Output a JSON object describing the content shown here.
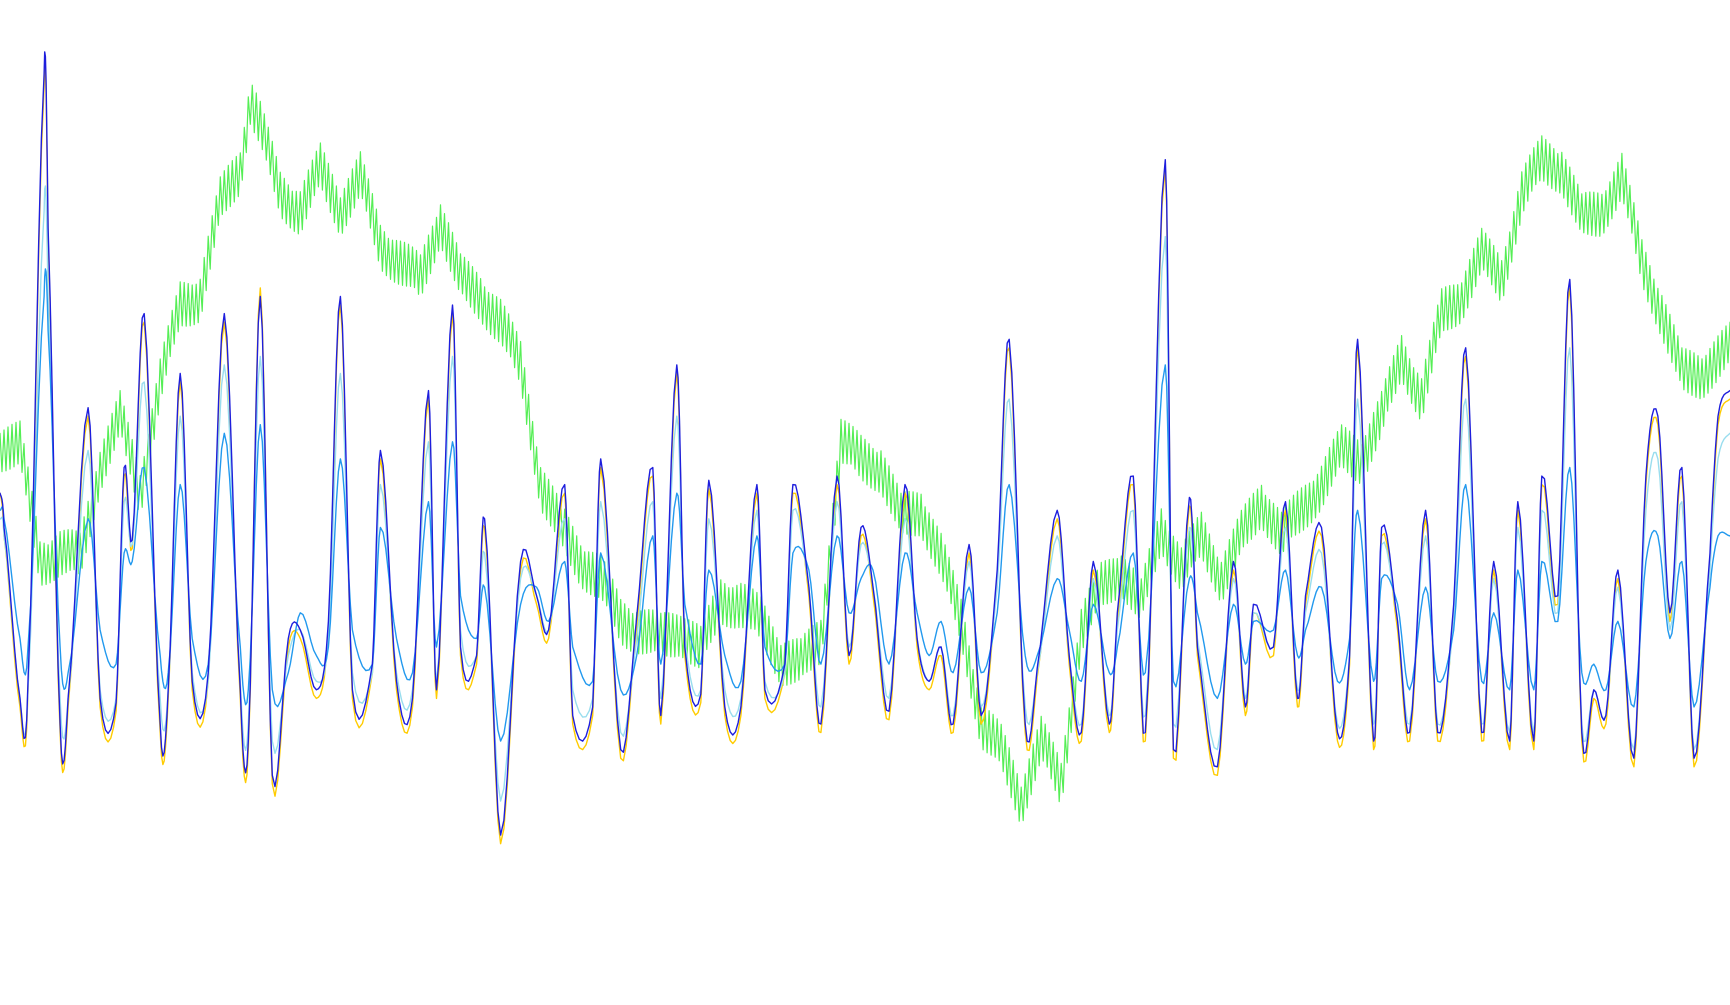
{
  "chart_data": {
    "type": "line",
    "title": "",
    "xlabel": "",
    "ylabel": "",
    "grid": false,
    "legend": "none",
    "xlim": [
      0,
      864
    ],
    "ylim": [
      0,
      1000
    ],
    "series": [
      {
        "role": "price",
        "color": "#55ee55",
        "noise_amp": 30,
        "noise_period": 2,
        "x": [
          0,
          10,
          20,
          30,
          40,
          50,
          60,
          70,
          80,
          90,
          100,
          110,
          120,
          125,
          130,
          140,
          150,
          160,
          170,
          180,
          190,
          200,
          210,
          220,
          230,
          240,
          250,
          260,
          270,
          280,
          290,
          300,
          310,
          320,
          330,
          340,
          350,
          360,
          370,
          380,
          390,
          400,
          410,
          420,
          430,
          440,
          450,
          460,
          470,
          480,
          490,
          500,
          510,
          520,
          530,
          540,
          550,
          560,
          570,
          580,
          590,
          600,
          610,
          620,
          630,
          640,
          650,
          660,
          670,
          680,
          690,
          700,
          710,
          720,
          730,
          740,
          750,
          760,
          770,
          780,
          790,
          800,
          810,
          820,
          830,
          840,
          850,
          864
        ],
        "values": [
          525,
          525,
          390,
          400,
          395,
          500,
          560,
          470,
          600,
          690,
          700,
          810,
          850,
          930,
          900,
          820,
          800,
          850,
          800,
          840,
          760,
          740,
          720,
          790,
          720,
          700,
          670,
          620,
          480,
          430,
          390,
          370,
          320,
          310,
          300,
          310,
          285,
          345,
          340,
          320,
          275,
          270,
          300,
          530,
          510,
          500,
          440,
          450,
          395,
          320,
          200,
          170,
          110,
          180,
          130,
          310,
          360,
          380,
          340,
          430,
          380,
          420,
          370,
          420,
          460,
          420,
          450,
          480,
          520,
          510,
          560,
          630,
          580,
          680,
          700,
          750,
          720,
          820,
          860,
          850,
          790,
          800,
          840,
          740,
          680,
          610,
          610,
          640
        ]
      },
      {
        "role": "fast",
        "color": "#1e1edd",
        "x": [
          0,
          2,
          10,
          14,
          22,
          24,
          30,
          34,
          44,
          50,
          58,
          62,
          66,
          72,
          80,
          84,
          90,
          96,
          104,
          112,
          120,
          124,
          130,
          136,
          144,
          150,
          158,
          164,
          170,
          176,
          186,
          190,
          198,
          206,
          214,
          218,
          226,
          230,
          238,
          242,
          250,
          260,
          268,
          274,
          282,
          286,
          296,
          300,
          310,
          318,
          326,
          330,
          338,
          342,
          350,
          354,
          362,
          370,
          378,
          382,
          392,
          396,
          404,
          410,
          418,
          424,
          430,
          436,
          444,
          452,
          458,
          464,
          470,
          476,
          484,
          490,
          498,
          504,
          512,
          518,
          528,
          534,
          540,
          546,
          554,
          558,
          566,
          572,
          582,
          586,
          594,
          598,
          608,
          616,
          622,
          626,
          636,
          642,
          648,
          652,
          660,
          668,
          674,
          678,
          686,
          690,
          698,
          704,
          712,
          718,
          726,
          732,
          740,
          746,
          754,
          758,
          766,
          770,
          778,
          784,
          790,
          796,
          802,
          808,
          816,
          822,
          828,
          834,
          840,
          846,
          854,
          858,
          864
        ],
        "values": [
          470,
          430,
          230,
          250,
          960,
          780,
          200,
          230,
          570,
          230,
          225,
          500,
          415,
          680,
          200,
          240,
          610,
          250,
          260,
          680,
          240,
          180,
          700,
          140,
          300,
          310,
          240,
          320,
          700,
          240,
          270,
          520,
          250,
          230,
          590,
          240,
          690,
          290,
          280,
          440,
          70,
          390,
          350,
          310,
          480,
          210,
          220,
          510,
          170,
          325,
          500,
          210,
          620,
          290,
          235,
          485,
          220,
          220,
          480,
          240,
          270,
          480,
          360,
          200,
          490,
          280,
          430,
          360,
          215,
          480,
          300,
          250,
          290,
          200,
          410,
          210,
          380,
          650,
          200,
          265,
          450,
          280,
          190,
          390,
          200,
          330,
          490,
          190,
          860,
          170,
          465,
          290,
          150,
          390,
          220,
          340,
          290,
          460,
          230,
          350,
          430,
          190,
          280,
          650,
          180,
          430,
          320,
          190,
          450,
          190,
          340,
          640,
          190,
          390,
          180,
          460,
          180,
          490,
          350,
          720,
          190,
          240,
          210,
          380,
          160,
          490,
          560,
          330,
          500,
          160,
          400,
          560,
          590
        ]
      },
      {
        "role": "fast-alt",
        "color": "#ffcc00",
        "stroke_width": 1,
        "x": [
          0,
          2,
          10,
          14,
          22,
          24,
          30,
          34,
          44,
          50,
          58,
          62,
          66,
          72,
          80,
          84,
          90,
          96,
          104,
          112,
          120,
          124,
          130,
          136,
          144,
          150,
          158,
          164,
          170,
          176,
          186,
          190,
          198,
          206,
          214,
          218,
          226,
          230,
          238,
          242,
          250,
          260,
          268,
          274,
          282,
          286,
          296,
          300,
          310,
          318,
          326,
          330,
          338,
          342,
          350,
          354,
          362,
          370,
          378,
          382,
          392,
          396,
          404,
          410,
          418,
          424,
          430,
          436,
          444,
          452,
          458,
          464,
          470,
          476,
          484,
          490,
          498,
          504,
          512,
          518,
          528,
          534,
          540,
          546,
          554,
          558,
          566,
          572,
          582,
          586,
          594,
          598,
          608,
          616,
          622,
          626,
          636,
          642,
          648,
          652,
          660,
          668,
          674,
          678,
          686,
          690,
          698,
          704,
          712,
          718,
          726,
          732,
          740,
          746,
          754,
          758,
          766,
          770,
          778,
          784,
          790,
          796,
          802,
          808,
          816,
          822,
          828,
          834,
          840,
          846,
          854,
          858,
          864
        ],
        "values": [
          470,
          420,
          220,
          240,
          945,
          770,
          190,
          220,
          560,
          220,
          215,
          490,
          405,
          670,
          190,
          230,
          600,
          240,
          250,
          670,
          230,
          170,
          710,
          130,
          290,
          300,
          230,
          310,
          690,
          230,
          260,
          510,
          240,
          220,
          580,
          230,
          680,
          280,
          270,
          430,
          60,
          380,
          340,
          300,
          470,
          200,
          210,
          500,
          160,
          315,
          490,
          200,
          610,
          280,
          225,
          475,
          210,
          210,
          470,
          230,
          260,
          470,
          350,
          190,
          480,
          270,
          420,
          350,
          205,
          470,
          290,
          240,
          280,
          190,
          400,
          200,
          370,
          640,
          190,
          255,
          440,
          270,
          180,
          380,
          190,
          320,
          480,
          180,
          850,
          160,
          455,
          280,
          140,
          380,
          210,
          330,
          280,
          450,
          220,
          340,
          420,
          180,
          270,
          640,
          170,
          420,
          310,
          180,
          440,
          180,
          330,
          630,
          180,
          380,
          170,
          450,
          170,
          480,
          340,
          710,
          180,
          230,
          200,
          370,
          150,
          480,
          550,
          320,
          490,
          150,
          390,
          550,
          580
        ]
      },
      {
        "role": "slow",
        "color": "#2299ee",
        "x": [
          0,
          2,
          10,
          14,
          22,
          24,
          30,
          34,
          44,
          50,
          58,
          62,
          66,
          72,
          80,
          84,
          90,
          96,
          104,
          112,
          120,
          124,
          130,
          136,
          144,
          150,
          158,
          164,
          170,
          176,
          186,
          190,
          198,
          206,
          214,
          218,
          226,
          230,
          238,
          242,
          250,
          260,
          268,
          274,
          282,
          286,
          296,
          300,
          310,
          318,
          326,
          330,
          338,
          342,
          350,
          354,
          362,
          370,
          378,
          382,
          392,
          396,
          404,
          410,
          418,
          424,
          430,
          436,
          444,
          452,
          458,
          464,
          470,
          476,
          484,
          490,
          498,
          504,
          512,
          518,
          528,
          534,
          540,
          546,
          554,
          558,
          566,
          572,
          582,
          586,
          594,
          598,
          608,
          616,
          622,
          626,
          636,
          642,
          648,
          652,
          660,
          668,
          674,
          678,
          686,
          690,
          698,
          704,
          712,
          718,
          726,
          732,
          740,
          746,
          754,
          758,
          766,
          770,
          778,
          784,
          790,
          796,
          802,
          808,
          816,
          822,
          828,
          834,
          840,
          846,
          854,
          858,
          864
        ],
        "values": [
          450,
          440,
          300,
          290,
          700,
          660,
          290,
          260,
          440,
          310,
          270,
          400,
          390,
          500,
          280,
          260,
          480,
          300,
          270,
          540,
          290,
          240,
          550,
          240,
          260,
          330,
          280,
          290,
          510,
          310,
          270,
          430,
          300,
          260,
          460,
          290,
          530,
          350,
          300,
          360,
          180,
          340,
          360,
          320,
          390,
          290,
          250,
          400,
          240,
          280,
          420,
          270,
          470,
          340,
          270,
          380,
          280,
          250,
          420,
          290,
          270,
          400,
          380,
          270,
          420,
          330,
          370,
          380,
          270,
          400,
          330,
          280,
          320,
          260,
          360,
          260,
          330,
          480,
          280,
          280,
          370,
          310,
          250,
          340,
          260,
          290,
          400,
          260,
          620,
          250,
          370,
          330,
          230,
          340,
          270,
          320,
          310,
          380,
          280,
          310,
          360,
          250,
          300,
          450,
          250,
          370,
          340,
          240,
          360,
          250,
          310,
          480,
          250,
          330,
          240,
          380,
          240,
          390,
          320,
          500,
          260,
          270,
          240,
          320,
          220,
          390,
          420,
          300,
          390,
          220,
          360,
          420,
          420
        ]
      },
      {
        "role": "signal",
        "color": "#99ddee",
        "x": [
          0,
          2,
          10,
          14,
          22,
          24,
          30,
          34,
          44,
          50,
          58,
          62,
          66,
          72,
          80,
          84,
          90,
          96,
          104,
          112,
          120,
          124,
          130,
          136,
          144,
          150,
          158,
          164,
          170,
          176,
          186,
          190,
          198,
          206,
          214,
          218,
          226,
          230,
          238,
          242,
          250,
          260,
          268,
          274,
          282,
          286,
          296,
          300,
          310,
          318,
          326,
          330,
          338,
          342,
          350,
          354,
          362,
          370,
          378,
          382,
          392,
          396,
          404,
          410,
          418,
          424,
          430,
          436,
          444,
          452,
          458,
          464,
          470,
          476,
          484,
          490,
          498,
          504,
          512,
          518,
          528,
          534,
          540,
          546,
          554,
          558,
          566,
          572,
          582,
          586,
          594,
          598,
          608,
          616,
          622,
          626,
          636,
          642,
          648,
          652,
          660,
          668,
          674,
          678,
          686,
          690,
          698,
          704,
          712,
          718,
          726,
          732,
          740,
          746,
          754,
          758,
          766,
          770,
          778,
          784,
          790,
          796,
          802,
          808,
          816,
          822,
          828,
          834,
          840,
          846,
          854,
          858,
          864
        ],
        "values": [
          440,
          420,
          230,
          240,
          800,
          700,
          230,
          230,
          520,
          240,
          230,
          460,
          410,
          600,
          230,
          240,
          560,
          260,
          250,
          620,
          250,
          200,
          630,
          180,
          280,
          310,
          250,
          300,
          610,
          260,
          260,
          480,
          260,
          240,
          530,
          250,
          630,
          310,
          280,
          400,
          110,
          370,
          350,
          310,
          440,
          240,
          230,
          460,
          190,
          300,
          460,
          230,
          560,
          300,
          240,
          440,
          240,
          230,
          450,
          250,
          260,
          450,
          360,
          220,
          460,
          290,
          410,
          360,
          230,
          440,
          300,
          250,
          290,
          210,
          390,
          220,
          360,
          580,
          220,
          260,
          420,
          280,
          200,
          370,
          210,
          310,
          450,
          210,
          770,
          200,
          430,
          300,
          170,
          370,
          230,
          330,
          290,
          430,
          240,
          330,
          400,
          200,
          280,
          580,
          200,
          410,
          320,
          200,
          420,
          200,
          320,
          580,
          200,
          370,
          190,
          430,
          190,
          450,
          330,
          640,
          200,
          240,
          210,
          360,
          170,
          450,
          510,
          310,
          460,
          170,
          380,
          510,
          540
        ]
      }
    ]
  }
}
